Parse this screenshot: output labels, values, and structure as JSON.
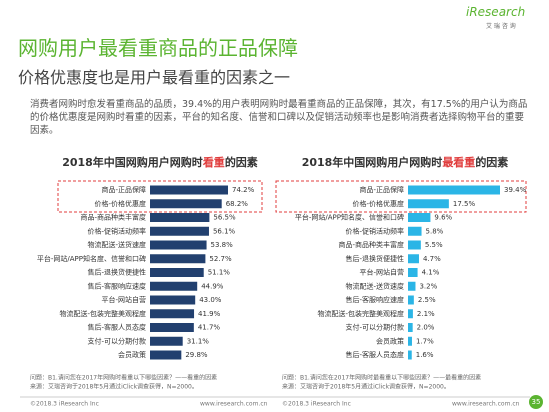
{
  "header": {
    "title": "网购用户最看重商品的正品保障",
    "subtitle": "价格优惠度也是用户最看重的因素之一",
    "logo_text": "iResearch",
    "logo_subtext": "艾 瑞 咨 询",
    "description": "消费者网购时愈发看重商品的品质，39.4%的用户表明网购时最看重商品的正品保障，其次，有17.5%的用户认为商品的价格优惠度是网购时看重的因素，平台的知名度、信誉和口碑以及促销活动频率也是影响消费者选择购物平台的重要因素。"
  },
  "chart_data": [
    {
      "type": "bar",
      "title_parts": [
        "2018年中国网购用户网购时",
        "看重",
        "的因素"
      ],
      "categories": [
        "商品-正品保障",
        "价格-价格优惠度",
        "商品-商品种类丰富度",
        "价格-促销活动频率",
        "物流配送-送货速度",
        "平台-网站/APP知名度、信誉和口碑",
        "售后-退换货便捷性",
        "售后-客服响应速度",
        "平台-网站自营",
        "物流配送-包装完整美观程度",
        "售后-客服人员态度",
        "支付-可以分期付款",
        "会员政策"
      ],
      "values": [
        74.2,
        68.2,
        56.5,
        56.1,
        53.8,
        52.7,
        51.1,
        44.9,
        43.0,
        41.9,
        41.7,
        31.1,
        29.8
      ],
      "value_labels": [
        "74.2%",
        "68.2%",
        "56.5%",
        "56.1%",
        "53.8%",
        "52.7%",
        "51.1%",
        "44.9%",
        "43.0%",
        "41.9%",
        "41.7%",
        "31.1%",
        "29.8%"
      ],
      "color": "#22406f"
    },
    {
      "type": "bar",
      "title_parts": [
        "2018年中国网购用户网购时",
        "最看重",
        "的因素"
      ],
      "categories": [
        "商品-正品保障",
        "价格-价格优惠度",
        "平台-网站/APP知名度、信誉和口碑",
        "价格-促销活动频率",
        "商品-商品种类丰富度",
        "售后-退换货便捷性",
        "平台-网站自营",
        "物流配送-送货速度",
        "售后-客服响应速度",
        "物流配送-包装完整美观程度",
        "支付-可以分期付款",
        "会员政策",
        "售后-客服人员态度"
      ],
      "values": [
        39.4,
        17.5,
        9.6,
        5.8,
        5.5,
        4.7,
        4.1,
        3.2,
        2.5,
        2.1,
        2.0,
        1.7,
        1.6
      ],
      "value_labels": [
        "39.4%",
        "17.5%",
        "9.6%",
        "5.8%",
        "5.5%",
        "4.7%",
        "4.1%",
        "3.2%",
        "2.5%",
        "2.1%",
        "2.0%",
        "1.7%",
        "1.6%"
      ],
      "color": "#2bb5e6"
    }
  ],
  "footer": {
    "left_notes": [
      "问题：B1.请问您在2017年网购时看重以下哪些因素？——看重的因素",
      "来源：艾瑞咨询于2018年5月通过iClick调查获得，N=2000。"
    ],
    "right_notes": [
      "问题：B1.请问您在2017年网购时最看重以下哪些因素？——最看重的因素",
      "来源：艾瑞咨询于2018年5月通过iClick调查获得，N=2000。"
    ],
    "copyright_left": "©2018.3 iResearch Inc",
    "url_left": "www.iresearch.com.cn",
    "copyright_right": "©2018.3 iResearch Inc",
    "url_right": "www.iresearch.com.cn",
    "page_number": "35"
  }
}
